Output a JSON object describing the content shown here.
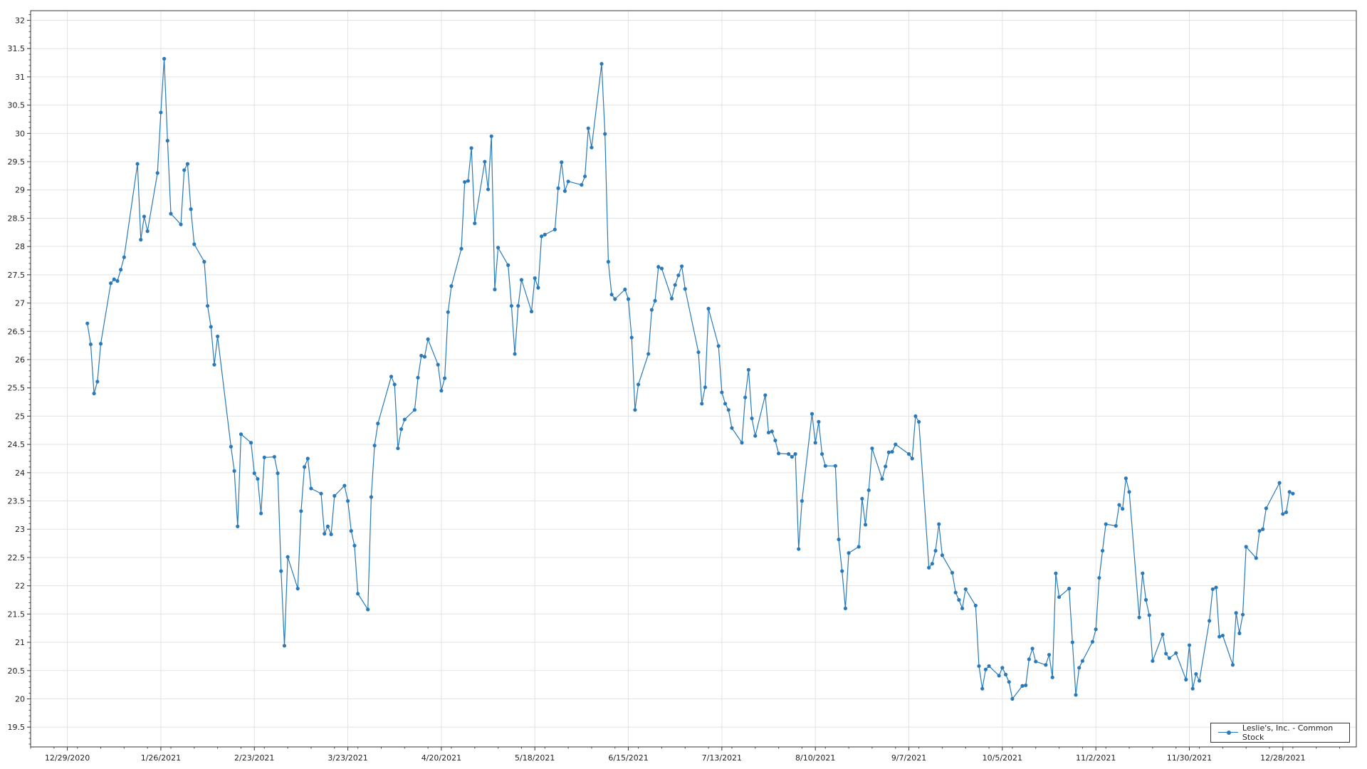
{
  "chart_data": {
    "type": "line",
    "title": "",
    "xlabel": "",
    "ylabel": "",
    "xlim": [
      "2020-12-18",
      "2022-01-19"
    ],
    "ylim": [
      19.15,
      32.17
    ],
    "y_ticks": [
      19.5,
      20,
      20.5,
      21,
      21.5,
      22,
      22.5,
      23,
      23.5,
      24,
      24.5,
      25,
      25.5,
      26,
      26.5,
      27,
      27.5,
      28,
      28.5,
      29,
      29.5,
      30,
      30.5,
      31,
      31.5,
      32
    ],
    "y_tick_labels": [
      "19.5",
      "20",
      "20.5",
      "21",
      "21.5",
      "22",
      "22.5",
      "23",
      "23.5",
      "24",
      "24.5",
      "25",
      "25.5",
      "26",
      "26.5",
      "27",
      "27.5",
      "28",
      "28.5",
      "29",
      "29.5",
      "30",
      "30.5",
      "31",
      "31.5",
      "32"
    ],
    "x_ticks": [
      "2020-12-29",
      "2021-01-26",
      "2021-02-23",
      "2021-03-23",
      "2021-04-20",
      "2021-05-18",
      "2021-06-15",
      "2021-07-13",
      "2021-08-10",
      "2021-09-07",
      "2021-10-05",
      "2021-11-02",
      "2021-11-30",
      "2021-12-28"
    ],
    "x_tick_labels": [
      "12/29/2020",
      "1/26/2021",
      "2/23/2021",
      "3/23/2021",
      "4/20/2021",
      "5/18/2021",
      "6/15/2021",
      "7/13/2021",
      "8/10/2021",
      "9/7/2021",
      "10/5/2021",
      "11/2/2021",
      "11/30/2021",
      "12/28/2021"
    ],
    "grid": true,
    "legend_position": "bottom-right",
    "colors": {
      "series": "#2a7ab9",
      "grid": "#e3e3e3",
      "axis": "#333333"
    },
    "series": [
      {
        "name": "Leslie's, Inc. - Common Stock",
        "points": [
          [
            "2021-01-04",
            26.64
          ],
          [
            "2021-01-05",
            26.27
          ],
          [
            "2021-01-06",
            25.4
          ],
          [
            "2021-01-07",
            25.61
          ],
          [
            "2021-01-08",
            26.28
          ],
          [
            "2021-01-11",
            27.35
          ],
          [
            "2021-01-12",
            27.42
          ],
          [
            "2021-01-13",
            27.39
          ],
          [
            "2021-01-14",
            27.59
          ],
          [
            "2021-01-15",
            27.81
          ],
          [
            "2021-01-19",
            29.46
          ],
          [
            "2021-01-20",
            28.12
          ],
          [
            "2021-01-21",
            28.53
          ],
          [
            "2021-01-22",
            28.27
          ],
          [
            "2021-01-25",
            29.3
          ],
          [
            "2021-01-26",
            30.37
          ],
          [
            "2021-01-27",
            31.32
          ],
          [
            "2021-01-28",
            29.87
          ],
          [
            "2021-01-29",
            28.58
          ],
          [
            "2021-02-01",
            28.39
          ],
          [
            "2021-02-02",
            29.35
          ],
          [
            "2021-02-03",
            29.46
          ],
          [
            "2021-02-04",
            28.66
          ],
          [
            "2021-02-05",
            28.04
          ],
          [
            "2021-02-08",
            27.73
          ],
          [
            "2021-02-09",
            26.95
          ],
          [
            "2021-02-10",
            26.58
          ],
          [
            "2021-02-11",
            25.91
          ],
          [
            "2021-02-12",
            26.41
          ],
          [
            "2021-02-16",
            24.46
          ],
          [
            "2021-02-17",
            24.03
          ],
          [
            "2021-02-18",
            23.05
          ],
          [
            "2021-02-19",
            24.68
          ],
          [
            "2021-02-22",
            24.53
          ],
          [
            "2021-02-23",
            23.99
          ],
          [
            "2021-02-24",
            23.89
          ],
          [
            "2021-02-25",
            23.28
          ],
          [
            "2021-02-26",
            24.27
          ],
          [
            "2021-03-01",
            24.28
          ],
          [
            "2021-03-02",
            23.99
          ],
          [
            "2021-03-03",
            22.26
          ],
          [
            "2021-03-04",
            20.94
          ],
          [
            "2021-03-05",
            22.51
          ],
          [
            "2021-03-08",
            21.95
          ],
          [
            "2021-03-09",
            23.32
          ],
          [
            "2021-03-10",
            24.1
          ],
          [
            "2021-03-11",
            24.25
          ],
          [
            "2021-03-12",
            23.72
          ],
          [
            "2021-03-15",
            23.63
          ],
          [
            "2021-03-16",
            22.92
          ],
          [
            "2021-03-17",
            23.05
          ],
          [
            "2021-03-18",
            22.91
          ],
          [
            "2021-03-19",
            23.59
          ],
          [
            "2021-03-22",
            23.77
          ],
          [
            "2021-03-23",
            23.5
          ],
          [
            "2021-03-24",
            22.97
          ],
          [
            "2021-03-25",
            22.71
          ],
          [
            "2021-03-26",
            21.86
          ],
          [
            "2021-03-29",
            21.58
          ],
          [
            "2021-03-30",
            23.57
          ],
          [
            "2021-03-31",
            24.48
          ],
          [
            "2021-04-01",
            24.87
          ],
          [
            "2021-04-05",
            25.7
          ],
          [
            "2021-04-06",
            25.56
          ],
          [
            "2021-04-07",
            24.43
          ],
          [
            "2021-04-08",
            24.77
          ],
          [
            "2021-04-09",
            24.94
          ],
          [
            "2021-04-12",
            25.11
          ],
          [
            "2021-04-13",
            25.68
          ],
          [
            "2021-04-14",
            26.07
          ],
          [
            "2021-04-15",
            26.05
          ],
          [
            "2021-04-16",
            26.36
          ],
          [
            "2021-04-19",
            25.91
          ],
          [
            "2021-04-20",
            25.45
          ],
          [
            "2021-04-21",
            25.67
          ],
          [
            "2021-04-22",
            26.84
          ],
          [
            "2021-04-23",
            27.3
          ],
          [
            "2021-04-26",
            27.96
          ],
          [
            "2021-04-27",
            29.14
          ],
          [
            "2021-04-28",
            29.16
          ],
          [
            "2021-04-29",
            29.74
          ],
          [
            "2021-04-30",
            28.41
          ],
          [
            "2021-05-03",
            29.5
          ],
          [
            "2021-05-04",
            29.01
          ],
          [
            "2021-05-05",
            29.95
          ],
          [
            "2021-05-06",
            27.24
          ],
          [
            "2021-05-07",
            27.98
          ],
          [
            "2021-05-10",
            27.67
          ],
          [
            "2021-05-11",
            26.95
          ],
          [
            "2021-05-12",
            26.1
          ],
          [
            "2021-05-13",
            26.95
          ],
          [
            "2021-05-14",
            27.41
          ],
          [
            "2021-05-17",
            26.85
          ],
          [
            "2021-05-18",
            27.44
          ],
          [
            "2021-05-19",
            27.27
          ],
          [
            "2021-05-20",
            28.18
          ],
          [
            "2021-05-21",
            28.21
          ],
          [
            "2021-05-24",
            28.3
          ],
          [
            "2021-05-25",
            29.03
          ],
          [
            "2021-05-26",
            29.49
          ],
          [
            "2021-05-27",
            28.98
          ],
          [
            "2021-05-28",
            29.15
          ],
          [
            "2021-06-01",
            29.09
          ],
          [
            "2021-06-02",
            29.24
          ],
          [
            "2021-06-03",
            30.09
          ],
          [
            "2021-06-04",
            29.75
          ],
          [
            "2021-06-07",
            31.23
          ],
          [
            "2021-06-08",
            29.99
          ],
          [
            "2021-06-09",
            27.73
          ],
          [
            "2021-06-10",
            27.15
          ],
          [
            "2021-06-11",
            27.07
          ],
          [
            "2021-06-14",
            27.24
          ],
          [
            "2021-06-15",
            27.07
          ],
          [
            "2021-06-16",
            26.39
          ],
          [
            "2021-06-17",
            25.11
          ],
          [
            "2021-06-18",
            25.56
          ],
          [
            "2021-06-21",
            26.1
          ],
          [
            "2021-06-22",
            26.88
          ],
          [
            "2021-06-23",
            27.04
          ],
          [
            "2021-06-24",
            27.64
          ],
          [
            "2021-06-25",
            27.61
          ],
          [
            "2021-06-28",
            27.08
          ],
          [
            "2021-06-29",
            27.32
          ],
          [
            "2021-06-30",
            27.49
          ],
          [
            "2021-07-01",
            27.65
          ],
          [
            "2021-07-02",
            27.25
          ],
          [
            "2021-07-06",
            26.13
          ],
          [
            "2021-07-07",
            25.22
          ],
          [
            "2021-07-08",
            25.51
          ],
          [
            "2021-07-09",
            26.9
          ],
          [
            "2021-07-12",
            26.24
          ],
          [
            "2021-07-13",
            25.42
          ],
          [
            "2021-07-14",
            25.22
          ],
          [
            "2021-07-15",
            25.11
          ],
          [
            "2021-07-16",
            24.79
          ],
          [
            "2021-07-19",
            24.53
          ],
          [
            "2021-07-20",
            25.33
          ],
          [
            "2021-07-21",
            25.82
          ],
          [
            "2021-07-22",
            24.96
          ],
          [
            "2021-07-23",
            24.65
          ],
          [
            "2021-07-26",
            25.37
          ],
          [
            "2021-07-27",
            24.71
          ],
          [
            "2021-07-28",
            24.73
          ],
          [
            "2021-07-29",
            24.57
          ],
          [
            "2021-07-30",
            24.34
          ],
          [
            "2021-08-02",
            24.33
          ],
          [
            "2021-08-03",
            24.28
          ],
          [
            "2021-08-04",
            24.33
          ],
          [
            "2021-08-05",
            22.65
          ],
          [
            "2021-08-06",
            23.5
          ],
          [
            "2021-08-09",
            25.04
          ],
          [
            "2021-08-10",
            24.53
          ],
          [
            "2021-08-11",
            24.9
          ],
          [
            "2021-08-12",
            24.33
          ],
          [
            "2021-08-13",
            24.12
          ],
          [
            "2021-08-16",
            24.12
          ],
          [
            "2021-08-17",
            22.82
          ],
          [
            "2021-08-18",
            22.26
          ],
          [
            "2021-08-19",
            21.6
          ],
          [
            "2021-08-20",
            22.58
          ],
          [
            "2021-08-23",
            22.69
          ],
          [
            "2021-08-24",
            23.54
          ],
          [
            "2021-08-25",
            23.08
          ],
          [
            "2021-08-26",
            23.69
          ],
          [
            "2021-08-27",
            24.43
          ],
          [
            "2021-08-30",
            23.89
          ],
          [
            "2021-08-31",
            24.11
          ],
          [
            "2021-09-01",
            24.36
          ],
          [
            "2021-09-02",
            24.37
          ],
          [
            "2021-09-03",
            24.5
          ],
          [
            "2021-09-07",
            24.33
          ],
          [
            "2021-09-08",
            24.25
          ],
          [
            "2021-09-09",
            25.0
          ],
          [
            "2021-09-10",
            24.9
          ],
          [
            "2021-09-13",
            22.32
          ],
          [
            "2021-09-14",
            22.39
          ],
          [
            "2021-09-15",
            22.62
          ],
          [
            "2021-09-16",
            23.09
          ],
          [
            "2021-09-17",
            22.54
          ],
          [
            "2021-09-20",
            22.23
          ],
          [
            "2021-09-21",
            21.88
          ],
          [
            "2021-09-22",
            21.75
          ],
          [
            "2021-09-23",
            21.6
          ],
          [
            "2021-09-24",
            21.94
          ],
          [
            "2021-09-27",
            21.65
          ],
          [
            "2021-09-28",
            20.58
          ],
          [
            "2021-09-29",
            20.18
          ],
          [
            "2021-09-30",
            20.52
          ],
          [
            "2021-10-01",
            20.58
          ],
          [
            "2021-10-04",
            20.41
          ],
          [
            "2021-10-05",
            20.55
          ],
          [
            "2021-10-06",
            20.43
          ],
          [
            "2021-10-07",
            20.3
          ],
          [
            "2021-10-08",
            20.0
          ],
          [
            "2021-10-11",
            20.23
          ],
          [
            "2021-10-12",
            20.24
          ],
          [
            "2021-10-13",
            20.7
          ],
          [
            "2021-10-14",
            20.89
          ],
          [
            "2021-10-15",
            20.66
          ],
          [
            "2021-10-18",
            20.6
          ],
          [
            "2021-10-19",
            20.78
          ],
          [
            "2021-10-20",
            20.38
          ],
          [
            "2021-10-21",
            22.22
          ],
          [
            "2021-10-22",
            21.8
          ],
          [
            "2021-10-25",
            21.95
          ],
          [
            "2021-10-26",
            21.0
          ],
          [
            "2021-10-27",
            20.07
          ],
          [
            "2021-10-28",
            20.55
          ],
          [
            "2021-10-29",
            20.67
          ],
          [
            "2021-11-01",
            21.01
          ],
          [
            "2021-11-02",
            21.23
          ],
          [
            "2021-11-03",
            22.14
          ],
          [
            "2021-11-04",
            22.62
          ],
          [
            "2021-11-05",
            23.09
          ],
          [
            "2021-11-08",
            23.06
          ],
          [
            "2021-11-09",
            23.43
          ],
          [
            "2021-11-10",
            23.36
          ],
          [
            "2021-11-11",
            23.9
          ],
          [
            "2021-11-12",
            23.66
          ],
          [
            "2021-11-15",
            21.44
          ],
          [
            "2021-11-16",
            22.22
          ],
          [
            "2021-11-17",
            21.75
          ],
          [
            "2021-11-18",
            21.48
          ],
          [
            "2021-11-19",
            20.67
          ],
          [
            "2021-11-22",
            21.14
          ],
          [
            "2021-11-23",
            20.8
          ],
          [
            "2021-11-24",
            20.72
          ],
          [
            "2021-11-26",
            20.81
          ],
          [
            "2021-11-29",
            20.34
          ],
          [
            "2021-11-30",
            20.95
          ],
          [
            "2021-12-01",
            20.18
          ],
          [
            "2021-12-02",
            20.44
          ],
          [
            "2021-12-03",
            20.32
          ],
          [
            "2021-12-06",
            21.38
          ],
          [
            "2021-12-07",
            21.94
          ],
          [
            "2021-12-08",
            21.97
          ],
          [
            "2021-12-09",
            21.1
          ],
          [
            "2021-12-10",
            21.12
          ],
          [
            "2021-12-13",
            20.6
          ],
          [
            "2021-12-14",
            21.52
          ],
          [
            "2021-12-15",
            21.16
          ],
          [
            "2021-12-16",
            21.49
          ],
          [
            "2021-12-17",
            22.69
          ],
          [
            "2021-12-20",
            22.49
          ],
          [
            "2021-12-21",
            22.97
          ],
          [
            "2021-12-22",
            23.0
          ],
          [
            "2021-12-23",
            23.37
          ],
          [
            "2021-12-27",
            23.82
          ],
          [
            "2021-12-28",
            23.27
          ],
          [
            "2021-12-29",
            23.3
          ],
          [
            "2021-12-30",
            23.66
          ],
          [
            "2021-12-31",
            23.63
          ]
        ]
      }
    ]
  }
}
